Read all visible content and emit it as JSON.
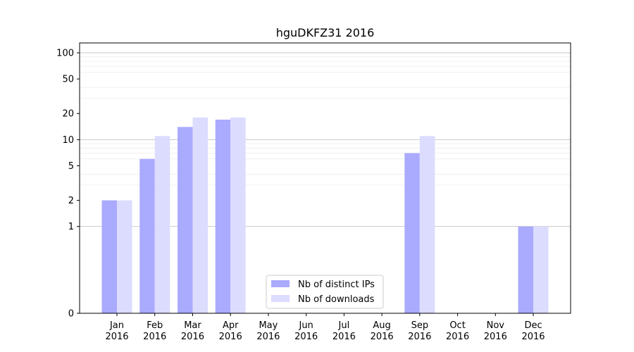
{
  "chart_data": {
    "type": "bar",
    "title": "hguDKFZ31 2016",
    "xlabel": "",
    "ylabel": "",
    "yscale": "symlog",
    "yticks": [
      0,
      1,
      2,
      5,
      10,
      20,
      50,
      100
    ],
    "ylim": [
      0,
      130
    ],
    "categories": [
      [
        "Jan",
        "2016"
      ],
      [
        "Feb",
        "2016"
      ],
      [
        "Mar",
        "2016"
      ],
      [
        "Apr",
        "2016"
      ],
      [
        "May",
        "2016"
      ],
      [
        "Jun",
        "2016"
      ],
      [
        "Jul",
        "2016"
      ],
      [
        "Aug",
        "2016"
      ],
      [
        "Sep",
        "2016"
      ],
      [
        "Oct",
        "2016"
      ],
      [
        "Nov",
        "2016"
      ],
      [
        "Dec",
        "2016"
      ]
    ],
    "series": [
      {
        "name": "Nb of distinct IPs",
        "color": "#aaaaff",
        "values": [
          2,
          6,
          14,
          17,
          0,
          0,
          0,
          0,
          7,
          0,
          0,
          1
        ]
      },
      {
        "name": "Nb of downloads",
        "color": "#dcdcff",
        "values": [
          2,
          11,
          18,
          18,
          0,
          0,
          0,
          0,
          11,
          0,
          0,
          1
        ]
      }
    ],
    "legend": "lower-center",
    "grid": true
  }
}
